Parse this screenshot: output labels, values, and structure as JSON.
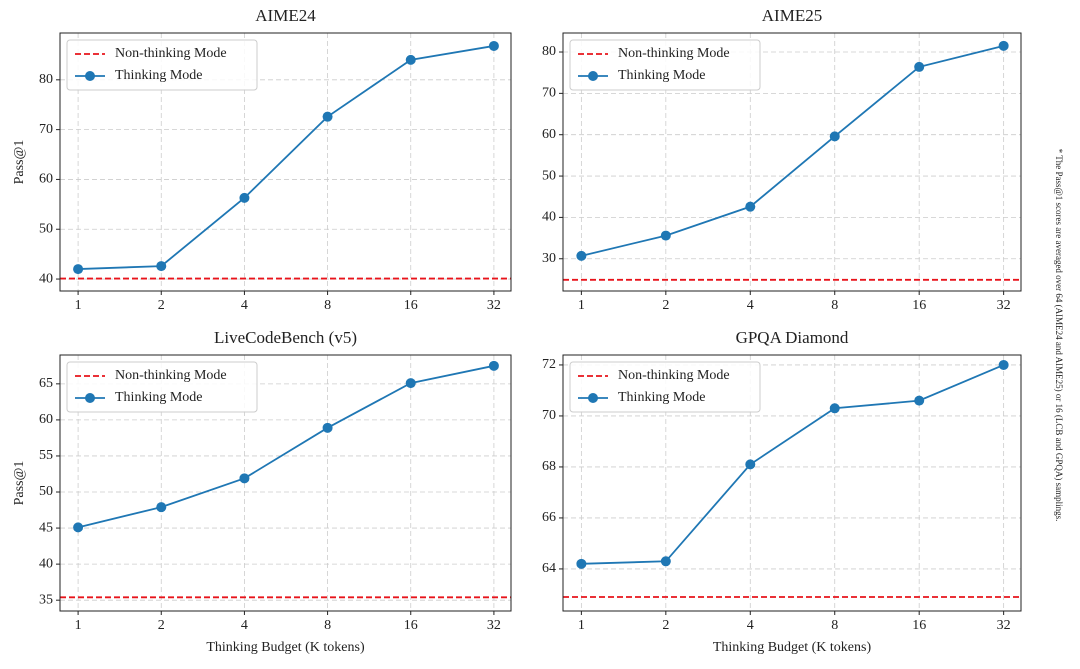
{
  "chart_data": [
    {
      "type": "line",
      "title": "AIME24",
      "ylabel": "Pass@1",
      "x": [
        1,
        2,
        4,
        8,
        16,
        32
      ],
      "xscale": "log2",
      "xlim": [
        0.86,
        36.9
      ],
      "xticks": [
        1,
        2,
        4,
        8,
        16,
        32
      ],
      "ylim": [
        37.6,
        89.4
      ],
      "yticks": [
        40,
        50,
        60,
        70,
        80
      ],
      "grid": true,
      "legend": "upper left",
      "series": [
        {
          "name": "Non-thinking Mode",
          "color": "#e8141b",
          "style": "hline",
          "value": 40.1
        },
        {
          "name": "Thinking Mode",
          "color": "#1f77b4",
          "values": [
            42.0,
            42.6,
            56.3,
            72.6,
            84.0,
            86.8
          ]
        }
      ]
    },
    {
      "type": "line",
      "title": "AIME25",
      "x": [
        1,
        2,
        4,
        8,
        16,
        32
      ],
      "xscale": "log2",
      "xlim": [
        0.86,
        36.9
      ],
      "xticks": [
        1,
        2,
        4,
        8,
        16,
        32
      ],
      "ylim": [
        22.2,
        84.6
      ],
      "yticks": [
        30,
        40,
        50,
        60,
        70,
        80
      ],
      "grid": true,
      "legend": "upper left",
      "series": [
        {
          "name": "Non-thinking Mode",
          "color": "#e8141b",
          "style": "hline",
          "value": 24.9
        },
        {
          "name": "Thinking Mode",
          "color": "#1f77b4",
          "values": [
            30.7,
            35.6,
            42.6,
            59.6,
            76.4,
            81.5
          ]
        }
      ]
    },
    {
      "type": "line",
      "title": "LiveCodeBench (v5)",
      "ylabel": "Pass@1",
      "xlabel": "Thinking Budget (K tokens)",
      "x": [
        1,
        2,
        4,
        8,
        16,
        32
      ],
      "xscale": "log2",
      "xlim": [
        0.86,
        36.9
      ],
      "xticks": [
        1,
        2,
        4,
        8,
        16,
        32
      ],
      "ylim": [
        33.5,
        69.0
      ],
      "yticks": [
        35,
        40,
        45,
        50,
        55,
        60,
        65
      ],
      "grid": true,
      "legend": "upper left",
      "series": [
        {
          "name": "Non-thinking Mode",
          "color": "#e8141b",
          "style": "hline",
          "value": 35.4
        },
        {
          "name": "Thinking Mode",
          "color": "#1f77b4",
          "values": [
            45.1,
            47.9,
            51.9,
            58.9,
            65.1,
            67.5
          ]
        }
      ]
    },
    {
      "type": "line",
      "title": "GPQA Diamond",
      "xlabel": "Thinking Budget (K tokens)",
      "x": [
        1,
        2,
        4,
        8,
        16,
        32
      ],
      "xscale": "log2",
      "xlim": [
        0.86,
        36.9
      ],
      "xticks": [
        1,
        2,
        4,
        8,
        16,
        32
      ],
      "ylim": [
        62.35,
        72.39
      ],
      "yticks": [
        64,
        66,
        68,
        70,
        72
      ],
      "grid": true,
      "legend": "upper left",
      "series": [
        {
          "name": "Non-thinking Mode",
          "color": "#e8141b",
          "style": "hline",
          "value": 62.9
        },
        {
          "name": "Thinking Mode",
          "color": "#1f77b4",
          "values": [
            64.2,
            64.3,
            68.1,
            70.3,
            70.6,
            72.0
          ]
        }
      ]
    }
  ],
  "note": "* The Pass@1 scores are averaged over 64 (AIME24 and AIME25) or 16 (LCB and GPQA) samplings."
}
